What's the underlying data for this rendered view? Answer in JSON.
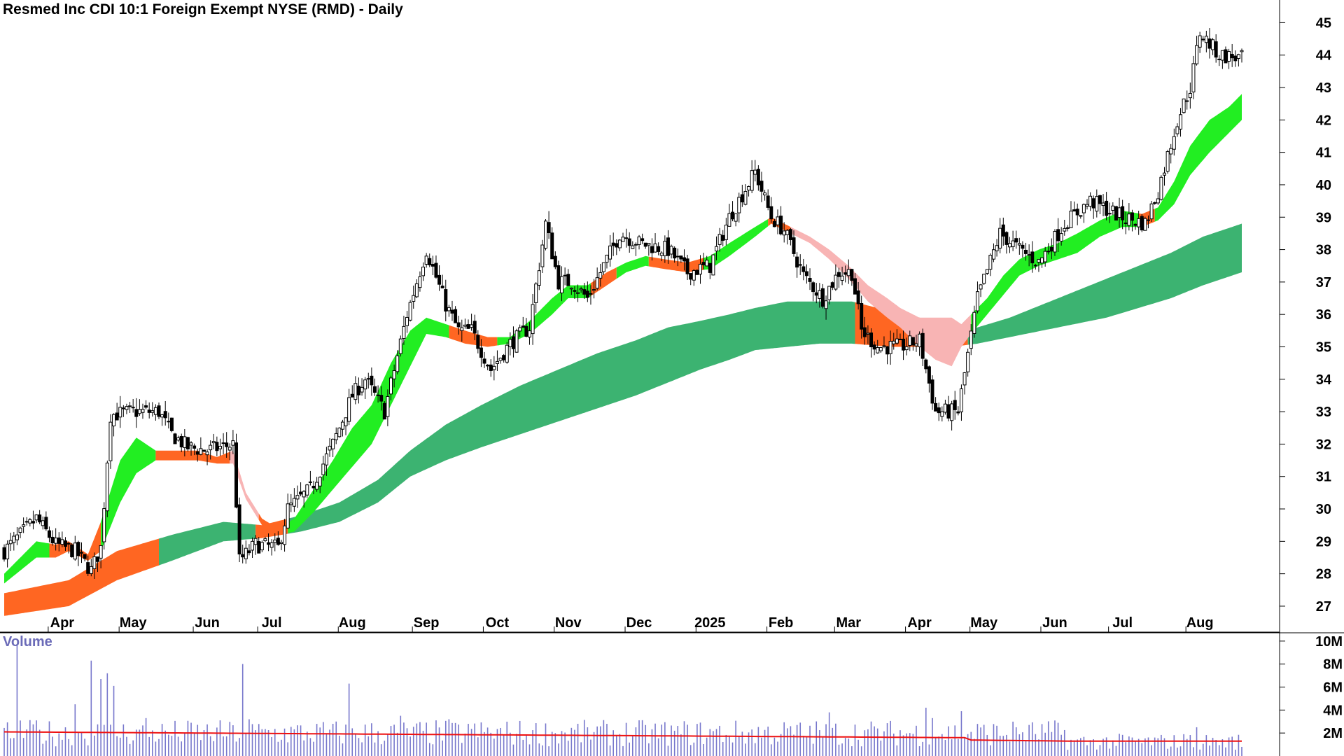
{
  "chart_title": "Resmed Inc CDI 10:1 Foreign Exempt NYSE (RMD) - Daily",
  "volume_label": "Volume",
  "colors": {
    "up_band": "#22ee22",
    "down_band": "#ff6622",
    "down_band_light": "#f8b4b4",
    "long_band": "#3cb371",
    "long_band_down": "#ff6622",
    "candle": "#000000",
    "volume_bar": "#7777cc",
    "volume_ma": "#ee1111",
    "axis": "#000000"
  },
  "chart_data": [
    {
      "type": "candlestick",
      "title": "Resmed Inc CDI 10:1 Foreign Exempt NYSE (RMD) - Daily",
      "ylim": [
        26.2,
        45.7
      ],
      "price_ticks": [
        27,
        28,
        29,
        30,
        31,
        32,
        33,
        34,
        35,
        36,
        37,
        38,
        39,
        40,
        41,
        42,
        43,
        44,
        45
      ],
      "month_labels": [
        "Apr",
        "May",
        "Jun",
        "Jul",
        "Aug",
        "Sep",
        "Oct",
        "Nov",
        "Dec",
        "2025",
        "Feb",
        "Mar",
        "Apr",
        "May",
        "Jun",
        "Jul",
        "Aug"
      ],
      "month_positions_days": [
        18,
        40,
        63,
        83,
        108,
        131,
        153,
        175,
        197,
        219,
        241,
        262,
        284,
        304,
        326,
        347,
        371
      ],
      "close_anchors": [
        [
          0,
          28.7
        ],
        [
          10,
          29.7
        ],
        [
          16,
          28.9
        ],
        [
          22,
          28.7
        ],
        [
          27,
          28.1
        ],
        [
          30,
          28.8
        ],
        [
          33,
          32.9
        ],
        [
          40,
          33
        ],
        [
          48,
          33
        ],
        [
          52,
          32.3
        ],
        [
          57,
          31.9
        ],
        [
          63,
          31.8
        ],
        [
          71,
          32
        ],
        [
          73,
          28.4
        ],
        [
          78,
          28.9
        ],
        [
          85,
          28.8
        ],
        [
          88,
          30
        ],
        [
          95,
          30.6
        ],
        [
          102,
          32
        ],
        [
          108,
          33.5
        ],
        [
          112,
          34
        ],
        [
          118,
          33
        ],
        [
          125,
          36
        ],
        [
          131,
          38
        ],
        [
          137,
          36.3
        ],
        [
          141,
          35.5
        ],
        [
          145,
          35.5
        ],
        [
          151,
          34.3
        ],
        [
          157,
          35.1
        ],
        [
          163,
          35.6
        ],
        [
          168,
          38.8
        ],
        [
          172,
          37
        ],
        [
          176,
          37
        ],
        [
          181,
          36.5
        ],
        [
          186,
          37.5
        ],
        [
          191,
          38.5
        ],
        [
          197,
          38.2
        ],
        [
          206,
          38
        ],
        [
          212,
          37.3
        ],
        [
          219,
          37.5
        ],
        [
          225,
          39
        ],
        [
          233,
          40.4
        ],
        [
          238,
          39
        ],
        [
          242,
          38.6
        ],
        [
          248,
          37.2
        ],
        [
          254,
          36.5
        ],
        [
          259,
          37.3
        ],
        [
          263,
          37.3
        ],
        [
          266,
          35.5
        ],
        [
          271,
          35
        ],
        [
          278,
          35
        ],
        [
          284,
          35.2
        ],
        [
          289,
          33
        ],
        [
          296,
          33
        ],
        [
          302,
          36.5
        ],
        [
          309,
          38.5
        ],
        [
          315,
          38
        ],
        [
          321,
          37.6
        ],
        [
          329,
          38.8
        ],
        [
          337,
          39.5
        ],
        [
          347,
          39
        ],
        [
          354,
          38.8
        ],
        [
          358,
          39.8
        ],
        [
          364,
          42
        ],
        [
          368,
          43
        ],
        [
          371,
          44.7
        ],
        [
          377,
          44
        ],
        [
          384,
          43.9
        ]
      ],
      "short_band_upper": [
        [
          0,
          28
        ],
        [
          10,
          29
        ],
        [
          16,
          28.9
        ],
        [
          20,
          29
        ],
        [
          26,
          28.6
        ],
        [
          30,
          29.6
        ],
        [
          36,
          31.5
        ],
        [
          41,
          32.2
        ],
        [
          47,
          31.8
        ],
        [
          52,
          31.8
        ],
        [
          60,
          31.8
        ],
        [
          66,
          31.6
        ],
        [
          71,
          31.8
        ],
        [
          75,
          30.5
        ],
        [
          80,
          29.7
        ],
        [
          85,
          29.4
        ],
        [
          90,
          29.7
        ],
        [
          96,
          30.6
        ],
        [
          102,
          31.5
        ],
        [
          108,
          32.5
        ],
        [
          114,
          33.2
        ],
        [
          120,
          34.5
        ],
        [
          126,
          35.5
        ],
        [
          131,
          35.9
        ],
        [
          137,
          35.7
        ],
        [
          143,
          35.5
        ],
        [
          150,
          35.3
        ],
        [
          157,
          35.3
        ],
        [
          163,
          35.8
        ],
        [
          170,
          36.5
        ],
        [
          175,
          36.9
        ],
        [
          181,
          36.9
        ],
        [
          187,
          37.3
        ],
        [
          193,
          37.6
        ],
        [
          199,
          37.8
        ],
        [
          205,
          37.7
        ],
        [
          212,
          37.6
        ],
        [
          219,
          37.8
        ],
        [
          225,
          38.2
        ],
        [
          233,
          38.7
        ],
        [
          238,
          39
        ],
        [
          244,
          38.7
        ],
        [
          250,
          38.4
        ],
        [
          256,
          38
        ],
        [
          262,
          37.5
        ],
        [
          268,
          36.9
        ],
        [
          274,
          36.5
        ],
        [
          278,
          36.2
        ],
        [
          284,
          35.9
        ],
        [
          289,
          35.9
        ],
        [
          294,
          35.9
        ],
        [
          297,
          35.7
        ],
        [
          300,
          36
        ],
        [
          305,
          36.5
        ],
        [
          310,
          37.2
        ],
        [
          315,
          37.7
        ],
        [
          321,
          38
        ],
        [
          327,
          38.2
        ],
        [
          333,
          38.5
        ],
        [
          340,
          38.9
        ],
        [
          347,
          39.2
        ],
        [
          353,
          39.1
        ],
        [
          358,
          39.3
        ],
        [
          363,
          40.1
        ],
        [
          368,
          41.2
        ],
        [
          374,
          42
        ],
        [
          380,
          42.4
        ],
        [
          384,
          42.8
        ]
      ],
      "short_band_lower": [
        [
          0,
          27.7
        ],
        [
          10,
          28.5
        ],
        [
          16,
          28.5
        ],
        [
          20,
          28.7
        ],
        [
          26,
          28.4
        ],
        [
          30,
          28.7
        ],
        [
          36,
          30.2
        ],
        [
          41,
          31.1
        ],
        [
          47,
          31.5
        ],
        [
          52,
          31.5
        ],
        [
          60,
          31.5
        ],
        [
          66,
          31.4
        ],
        [
          71,
          31.4
        ],
        [
          75,
          30.3
        ],
        [
          80,
          29.5
        ],
        [
          85,
          29.2
        ],
        [
          90,
          29.3
        ],
        [
          96,
          29.9
        ],
        [
          102,
          30.6
        ],
        [
          108,
          31.3
        ],
        [
          114,
          32
        ],
        [
          120,
          33.2
        ],
        [
          126,
          34.4
        ],
        [
          131,
          35.4
        ],
        [
          137,
          35.3
        ],
        [
          143,
          35.1
        ],
        [
          150,
          35
        ],
        [
          157,
          35.1
        ],
        [
          163,
          35.4
        ],
        [
          170,
          36
        ],
        [
          175,
          36.5
        ],
        [
          181,
          36.5
        ],
        [
          187,
          36.9
        ],
        [
          193,
          37.3
        ],
        [
          199,
          37.5
        ],
        [
          205,
          37.4
        ],
        [
          212,
          37.3
        ],
        [
          219,
          37.4
        ],
        [
          225,
          37.8
        ],
        [
          233,
          38.4
        ],
        [
          238,
          38.8
        ],
        [
          244,
          38.5
        ],
        [
          250,
          38.2
        ],
        [
          256,
          37.7
        ],
        [
          262,
          37.1
        ],
        [
          268,
          36.4
        ],
        [
          274,
          35.9
        ],
        [
          278,
          35.6
        ],
        [
          284,
          35
        ],
        [
          289,
          34.6
        ],
        [
          294,
          34.4
        ],
        [
          297,
          35
        ],
        [
          300,
          35.4
        ],
        [
          305,
          36
        ],
        [
          310,
          36.6
        ],
        [
          315,
          37.2
        ],
        [
          321,
          37.5
        ],
        [
          327,
          37.7
        ],
        [
          333,
          37.9
        ],
        [
          340,
          38.4
        ],
        [
          347,
          38.7
        ],
        [
          353,
          38.7
        ],
        [
          358,
          38.9
        ],
        [
          363,
          39.4
        ],
        [
          368,
          40.3
        ],
        [
          374,
          41
        ],
        [
          380,
          41.6
        ],
        [
          384,
          42
        ]
      ],
      "short_band_segments": [
        [
          0,
          14,
          "up"
        ],
        [
          14,
          30,
          "down"
        ],
        [
          30,
          47,
          "up"
        ],
        [
          47,
          70,
          "down"
        ],
        [
          70,
          79,
          "light"
        ],
        [
          79,
          88,
          "down"
        ],
        [
          88,
          138,
          "up"
        ],
        [
          138,
          153,
          "down"
        ],
        [
          153,
          182,
          "up"
        ],
        [
          182,
          190,
          "down"
        ],
        [
          190,
          200,
          "up"
        ],
        [
          200,
          217,
          "down"
        ],
        [
          217,
          237,
          "up"
        ],
        [
          237,
          244,
          "down"
        ],
        [
          244,
          263,
          "light"
        ],
        [
          263,
          300,
          "light"
        ],
        [
          300,
          352,
          "up"
        ],
        [
          352,
          357,
          "down"
        ],
        [
          357,
          384,
          "up"
        ]
      ],
      "long_band_upper": [
        [
          0,
          27.4
        ],
        [
          20,
          27.8
        ],
        [
          35,
          28.7
        ],
        [
          52,
          29.2
        ],
        [
          68,
          29.6
        ],
        [
          80,
          29.5
        ],
        [
          92,
          29.8
        ],
        [
          104,
          30.2
        ],
        [
          116,
          30.9
        ],
        [
          126,
          31.8
        ],
        [
          137,
          32.6
        ],
        [
          148,
          33.2
        ],
        [
          160,
          33.8
        ],
        [
          172,
          34.3
        ],
        [
          184,
          34.8
        ],
        [
          196,
          35.2
        ],
        [
          206,
          35.6
        ],
        [
          216,
          35.8
        ],
        [
          225,
          36
        ],
        [
          233,
          36.2
        ],
        [
          243,
          36.4
        ],
        [
          253,
          36.4
        ],
        [
          263,
          36.4
        ],
        [
          275,
          36.1
        ],
        [
          284,
          35.9
        ],
        [
          294,
          35.6
        ],
        [
          302,
          35.6
        ],
        [
          312,
          35.9
        ],
        [
          322,
          36.3
        ],
        [
          332,
          36.7
        ],
        [
          342,
          37.1
        ],
        [
          352,
          37.5
        ],
        [
          362,
          37.9
        ],
        [
          372,
          38.4
        ],
        [
          384,
          38.8
        ]
      ],
      "long_band_lower": [
        [
          0,
          26.7
        ],
        [
          20,
          27
        ],
        [
          35,
          27.8
        ],
        [
          52,
          28.4
        ],
        [
          68,
          29
        ],
        [
          80,
          29.1
        ],
        [
          92,
          29.3
        ],
        [
          104,
          29.6
        ],
        [
          116,
          30.2
        ],
        [
          126,
          31
        ],
        [
          137,
          31.5
        ],
        [
          148,
          31.9
        ],
        [
          160,
          32.3
        ],
        [
          172,
          32.7
        ],
        [
          184,
          33.1
        ],
        [
          196,
          33.5
        ],
        [
          206,
          33.9
        ],
        [
          216,
          34.3
        ],
        [
          225,
          34.6
        ],
        [
          233,
          34.9
        ],
        [
          243,
          35
        ],
        [
          253,
          35.1
        ],
        [
          263,
          35.1
        ],
        [
          275,
          35
        ],
        [
          284,
          35
        ],
        [
          294,
          35
        ],
        [
          302,
          35.1
        ],
        [
          312,
          35.3
        ],
        [
          322,
          35.5
        ],
        [
          332,
          35.7
        ],
        [
          342,
          35.9
        ],
        [
          352,
          36.2
        ],
        [
          362,
          36.5
        ],
        [
          372,
          36.9
        ],
        [
          384,
          37.3
        ]
      ],
      "long_band_segments": [
        [
          0,
          48,
          "down"
        ],
        [
          48,
          78,
          "up"
        ],
        [
          78,
          88,
          "down"
        ],
        [
          88,
          264,
          "up"
        ],
        [
          264,
          299,
          "down"
        ],
        [
          299,
          384,
          "up"
        ]
      ]
    },
    {
      "type": "bar",
      "title": "Volume",
      "ylim": [
        0,
        10.6
      ],
      "ytick_labels": [
        "2M",
        "4M",
        "6M",
        "8M",
        "10M"
      ],
      "ytick_values": [
        2,
        4,
        6,
        8,
        10
      ],
      "volume_avg_millions": 2.1,
      "volume_avg_late_millions": 1.3,
      "volume_spikes_millions": [
        [
          4,
          9.6
        ],
        [
          10,
          3.1
        ],
        [
          22,
          4.5
        ],
        [
          27,
          8.3
        ],
        [
          30,
          6.7
        ],
        [
          32,
          7.2
        ],
        [
          34,
          6.1
        ],
        [
          44,
          3.3
        ],
        [
          74,
          8
        ],
        [
          76,
          3.2
        ],
        [
          107,
          6.3
        ],
        [
          123,
          3.5
        ],
        [
          138,
          3.2
        ],
        [
          144,
          2.8
        ],
        [
          208,
          2.2
        ],
        [
          256,
          3.8
        ],
        [
          286,
          4.2
        ],
        [
          288,
          3.3
        ],
        [
          297,
          3.9
        ],
        [
          314,
          2.5
        ],
        [
          366,
          1.9
        ],
        [
          370,
          2.5
        ],
        [
          376,
          1.4
        ]
      ]
    }
  ]
}
